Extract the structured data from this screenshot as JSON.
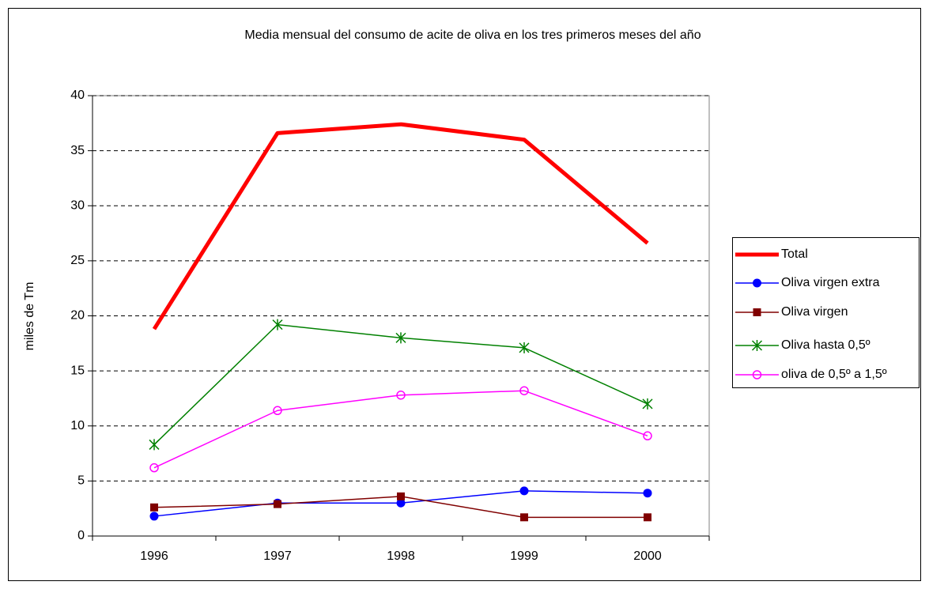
{
  "chart_data": {
    "type": "line",
    "title": "Media mensual del consumo de acite de oliva en los tres primeros meses del año",
    "y_label": "miles de Tm",
    "categories": [
      "1996",
      "1997",
      "1998",
      "1999",
      "2000"
    ],
    "ylim": [
      0,
      40
    ],
    "yticks": [
      0,
      5,
      10,
      15,
      20,
      25,
      30,
      35,
      40
    ],
    "grid": true,
    "legend": "right",
    "series": [
      {
        "name": "Total",
        "color": "#ff0000",
        "marker": "none",
        "values": [
          18.8,
          36.6,
          37.4,
          36.0,
          26.6
        ]
      },
      {
        "name": "Oliva virgen extra",
        "color": "#0000ff",
        "marker": "circle",
        "values": [
          1.8,
          3.0,
          3.0,
          4.1,
          3.9
        ]
      },
      {
        "name": "Oliva virgen",
        "color": "#800000",
        "marker": "square",
        "values": [
          2.6,
          2.9,
          3.6,
          1.7,
          1.7
        ]
      },
      {
        "name": "Oliva hasta 0,5º",
        "color": "#008000",
        "marker": "star",
        "values": [
          8.3,
          19.2,
          18.0,
          17.1,
          12.0
        ]
      },
      {
        "name": "oliva de 0,5º a 1,5º",
        "color": "#ff00ff",
        "marker": "open-circle",
        "values": [
          6.2,
          11.4,
          12.8,
          13.2,
          9.1
        ]
      }
    ]
  }
}
